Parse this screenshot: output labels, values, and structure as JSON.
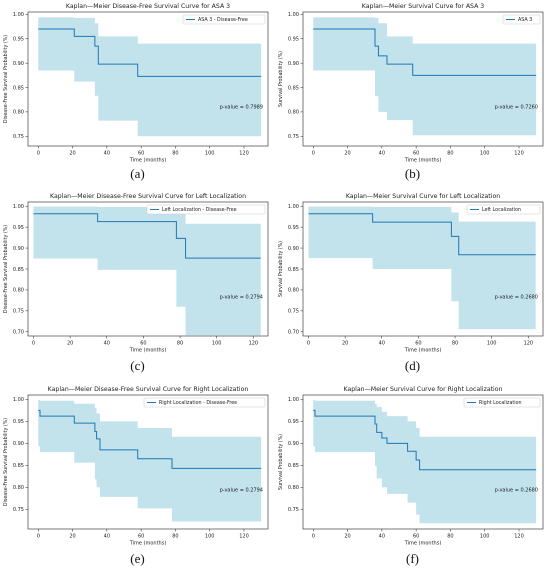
{
  "chart_data": [
    {
      "id": "a",
      "type": "line",
      "title": "Kaplan—Meier Disease-Free Survival Curve for ASA 3",
      "xlabel": "Time (months)",
      "ylabel": "Disease-Free Survival Probability (%)",
      "legend": "ASA 3 - Disease-Free",
      "legend_position": "top-right",
      "pvalue_text": "p-value = 0.7989",
      "caption": "(a)",
      "xlim": [
        -6,
        134
      ],
      "ylim": [
        0.73,
        1.005
      ],
      "xticks": [
        0,
        20,
        40,
        60,
        80,
        100,
        120
      ],
      "yticks": [
        0.75,
        0.8,
        0.85,
        0.9,
        0.95,
        1.0
      ],
      "ytick_labels": [
        "0.75",
        "0.80",
        "0.85",
        "0.90",
        "0.95",
        "1.00"
      ],
      "steps": [
        [
          0,
          0.97
        ],
        [
          21,
          0.955
        ],
        [
          33,
          0.935
        ],
        [
          35,
          0.898
        ],
        [
          58,
          0.873
        ],
        [
          130,
          0.873
        ]
      ],
      "ci_upper": [
        [
          0,
          0.994
        ],
        [
          21,
          0.993
        ],
        [
          33,
          0.982
        ],
        [
          35,
          0.955
        ],
        [
          58,
          0.94
        ],
        [
          130,
          0.94
        ]
      ],
      "ci_lower": [
        [
          0,
          0.885
        ],
        [
          21,
          0.862
        ],
        [
          33,
          0.833
        ],
        [
          35,
          0.782
        ],
        [
          58,
          0.75
        ],
        [
          130,
          0.75
        ]
      ]
    },
    {
      "id": "b",
      "type": "line",
      "title": "Kaplan—Meier Survival Curve for ASA 3",
      "xlabel": "Time (months)",
      "ylabel": "Survival Probability (%)",
      "legend": "ASA 3",
      "legend_position": "top-right",
      "pvalue_text": "p-value = 0.7260",
      "caption": "(b)",
      "xlim": [
        -6,
        134
      ],
      "ylim": [
        0.73,
        1.005
      ],
      "xticks": [
        0,
        20,
        40,
        60,
        80,
        100,
        120
      ],
      "yticks": [
        0.75,
        0.8,
        0.85,
        0.9,
        0.95,
        1.0
      ],
      "ytick_labels": [
        "0.75",
        "0.80",
        "0.85",
        "0.90",
        "0.95",
        "1.00"
      ],
      "steps": [
        [
          0,
          0.97
        ],
        [
          36,
          0.935
        ],
        [
          38,
          0.915
        ],
        [
          43,
          0.898
        ],
        [
          58,
          0.875
        ],
        [
          130,
          0.875
        ]
      ],
      "ci_upper": [
        [
          0,
          0.994
        ],
        [
          36,
          0.993
        ],
        [
          38,
          0.982
        ],
        [
          43,
          0.955
        ],
        [
          58,
          0.94
        ],
        [
          130,
          0.94
        ]
      ],
      "ci_lower": [
        [
          0,
          0.885
        ],
        [
          36,
          0.832
        ],
        [
          38,
          0.8
        ],
        [
          43,
          0.783
        ],
        [
          58,
          0.752
        ],
        [
          130,
          0.752
        ]
      ]
    },
    {
      "id": "c",
      "type": "line",
      "title": "Kaplan—Meier Disease-Free Survival Curve for Left Localization",
      "xlabel": "Time (months)",
      "ylabel": "Disease-Free Survival Probability (%)",
      "legend": "Left Localization - Disease-Free",
      "legend_position": "top-right",
      "pvalue_text": "p-value = 0.2794",
      "caption": "(c)",
      "xlim": [
        -3,
        128
      ],
      "ylim": [
        0.69,
        1.01
      ],
      "xticks": [
        0,
        20,
        40,
        60,
        80,
        100,
        120
      ],
      "yticks": [
        0.7,
        0.75,
        0.8,
        0.85,
        0.9,
        0.95,
        1.0
      ],
      "ytick_labels": [
        "0.70",
        "0.75",
        "0.80",
        "0.85",
        "0.90",
        "0.95",
        "1.00"
      ],
      "steps": [
        [
          0,
          0.982
        ],
        [
          35,
          0.963
        ],
        [
          78,
          0.923
        ],
        [
          83,
          0.876
        ],
        [
          124,
          0.876
        ]
      ],
      "ci_upper": [
        [
          0,
          0.999
        ],
        [
          35,
          0.998
        ],
        [
          78,
          0.985
        ],
        [
          83,
          0.958
        ],
        [
          124,
          0.958
        ]
      ],
      "ci_lower": [
        [
          0,
          0.875
        ],
        [
          35,
          0.848
        ],
        [
          78,
          0.76
        ],
        [
          83,
          0.692
        ],
        [
          124,
          0.692
        ]
      ]
    },
    {
      "id": "d",
      "type": "line",
      "title": "Kaplan—Meier Survival Curve for Left Localization",
      "xlabel": "Time (months)",
      "ylabel": "Survival Probability (%)",
      "legend": "Left Localization",
      "legend_position": "top-right",
      "pvalue_text": "p-value = 0.2680",
      "caption": "(d)",
      "xlim": [
        -3,
        128
      ],
      "ylim": [
        0.69,
        1.01
      ],
      "xticks": [
        0,
        20,
        40,
        60,
        80,
        100,
        120
      ],
      "yticks": [
        0.7,
        0.75,
        0.8,
        0.85,
        0.9,
        0.95,
        1.0
      ],
      "ytick_labels": [
        "0.70",
        "0.75",
        "0.80",
        "0.85",
        "0.90",
        "0.95",
        "1.00"
      ],
      "steps": [
        [
          0,
          0.982
        ],
        [
          35,
          0.962
        ],
        [
          78,
          0.928
        ],
        [
          82,
          0.884
        ],
        [
          124,
          0.884
        ]
      ],
      "ci_upper": [
        [
          0,
          0.999
        ],
        [
          35,
          0.998
        ],
        [
          78,
          0.985
        ],
        [
          82,
          0.963
        ],
        [
          124,
          0.963
        ]
      ],
      "ci_lower": [
        [
          0,
          0.876
        ],
        [
          35,
          0.85
        ],
        [
          78,
          0.773
        ],
        [
          82,
          0.706
        ],
        [
          124,
          0.706
        ]
      ]
    },
    {
      "id": "e",
      "type": "line",
      "title": "Kaplan—Meier Disease-Free Survival Curve for Right Localization",
      "xlabel": "Time (months)",
      "ylabel": "Disease-Free Survival Probability (%)",
      "legend": "Right Localization - Disease-Free",
      "legend_position": "top-right",
      "pvalue_text": "p-value = 0.2794",
      "caption": "(e)",
      "xlim": [
        -6,
        134
      ],
      "ylim": [
        0.705,
        1.01
      ],
      "xticks": [
        0,
        20,
        40,
        60,
        80,
        100,
        120
      ],
      "yticks": [
        0.75,
        0.8,
        0.85,
        0.9,
        0.95,
        1.0
      ],
      "ytick_labels": [
        "0.75",
        "0.80",
        "0.85",
        "0.90",
        "0.95",
        "1.00"
      ],
      "steps": [
        [
          0,
          0.975
        ],
        [
          1,
          0.962
        ],
        [
          21,
          0.946
        ],
        [
          33,
          0.927
        ],
        [
          34,
          0.91
        ],
        [
          36,
          0.885
        ],
        [
          58,
          0.865
        ],
        [
          78,
          0.843
        ],
        [
          130,
          0.843
        ]
      ],
      "ci_upper": [
        [
          0,
          0.999
        ],
        [
          1,
          0.997
        ],
        [
          21,
          0.99
        ],
        [
          33,
          0.98
        ],
        [
          34,
          0.968
        ],
        [
          36,
          0.95
        ],
        [
          58,
          0.935
        ],
        [
          78,
          0.915
        ],
        [
          130,
          0.915
        ]
      ],
      "ci_lower": [
        [
          0,
          0.893
        ],
        [
          1,
          0.88
        ],
        [
          21,
          0.856
        ],
        [
          33,
          0.818
        ],
        [
          34,
          0.8
        ],
        [
          36,
          0.778
        ],
        [
          58,
          0.752
        ],
        [
          78,
          0.722
        ],
        [
          130,
          0.722
        ]
      ]
    },
    {
      "id": "f",
      "type": "line",
      "title": "Kaplan—Meier Survival Curve for Right Localization",
      "xlabel": "Time (months)",
      "ylabel": "Survival Probability (%)",
      "legend": "Right Localization",
      "legend_position": "top-right",
      "pvalue_text": "p-value = 0.2680",
      "caption": "(f)",
      "xlim": [
        -6,
        134
      ],
      "ylim": [
        0.705,
        1.01
      ],
      "xticks": [
        0,
        20,
        40,
        60,
        80,
        100,
        120
      ],
      "yticks": [
        0.75,
        0.8,
        0.85,
        0.9,
        0.95,
        1.0
      ],
      "ytick_labels": [
        "0.75",
        "0.80",
        "0.85",
        "0.90",
        "0.95",
        "1.00"
      ],
      "steps": [
        [
          0,
          0.975
        ],
        [
          1,
          0.962
        ],
        [
          36,
          0.944
        ],
        [
          37,
          0.925
        ],
        [
          40,
          0.912
        ],
        [
          43,
          0.9
        ],
        [
          55,
          0.882
        ],
        [
          60,
          0.862
        ],
        [
          62,
          0.84
        ],
        [
          130,
          0.84
        ]
      ],
      "ci_upper": [
        [
          0,
          0.999
        ],
        [
          1,
          0.997
        ],
        [
          36,
          0.99
        ],
        [
          37,
          0.983
        ],
        [
          40,
          0.972
        ],
        [
          43,
          0.962
        ],
        [
          55,
          0.95
        ],
        [
          60,
          0.935
        ],
        [
          62,
          0.915
        ],
        [
          130,
          0.915
        ]
      ],
      "ci_lower": [
        [
          0,
          0.893
        ],
        [
          1,
          0.88
        ],
        [
          36,
          0.848
        ],
        [
          37,
          0.82
        ],
        [
          40,
          0.8
        ],
        [
          43,
          0.785
        ],
        [
          55,
          0.765
        ],
        [
          60,
          0.738
        ],
        [
          62,
          0.718
        ],
        [
          130,
          0.718
        ]
      ]
    }
  ]
}
